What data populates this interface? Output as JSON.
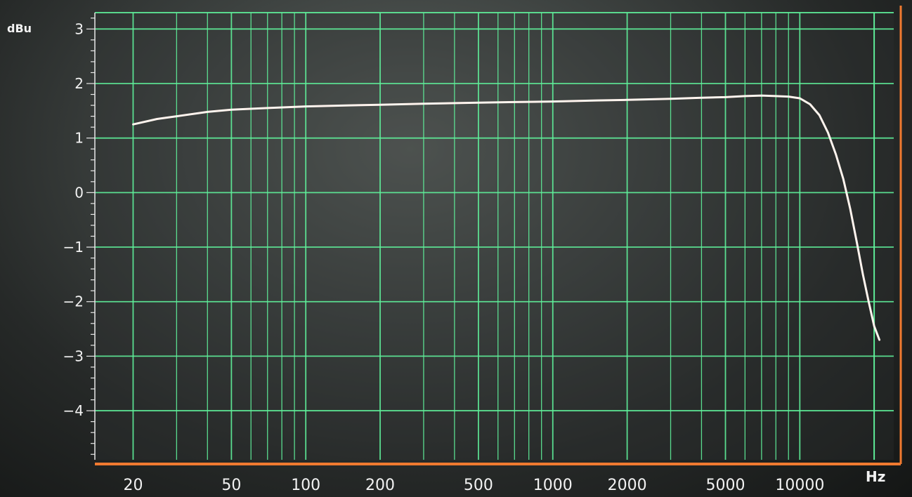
{
  "chart_data": {
    "type": "line",
    "title": "",
    "xlabel": "Hz",
    "ylabel": "dBu",
    "xscale": "log",
    "xlim": [
      14,
      24000
    ],
    "ylim": [
      -4.9,
      3.3
    ],
    "grid": true,
    "legend": "none",
    "x_ticks": [
      20,
      50,
      100,
      200,
      500,
      1000,
      2000,
      5000,
      10000
    ],
    "x_tick_labels": [
      "20",
      "50",
      "100",
      "200",
      "500",
      "1000",
      "2000",
      "5000",
      "10000"
    ],
    "y_ticks": [
      3,
      2,
      1,
      0,
      -1,
      -2,
      -3,
      -4
    ],
    "y_tick_labels": [
      "3",
      "2",
      "1",
      "0",
      "−1",
      "−2",
      "−3",
      "−4"
    ],
    "series": [
      {
        "x": [
          20,
          25,
          30,
          40,
          50,
          70,
          100,
          150,
          200,
          300,
          500,
          700,
          1000,
          1500,
          2000,
          3000,
          4000,
          5000,
          6000,
          7000,
          8000,
          9000,
          10000,
          11000,
          12000,
          13000,
          14000,
          15000,
          16000,
          17000,
          18000,
          19000,
          20000,
          21000
        ],
        "y": [
          1.25,
          1.35,
          1.4,
          1.48,
          1.52,
          1.55,
          1.58,
          1.6,
          1.61,
          1.63,
          1.65,
          1.66,
          1.67,
          1.69,
          1.7,
          1.72,
          1.74,
          1.75,
          1.77,
          1.78,
          1.77,
          1.76,
          1.73,
          1.62,
          1.42,
          1.1,
          0.7,
          0.25,
          -0.3,
          -0.9,
          -1.5,
          -2.0,
          -2.45,
          -2.7
        ]
      }
    ]
  },
  "style": {
    "background": "#2e3231",
    "grid_color": "#5ff09a",
    "curve_color": "#fff4ee",
    "frame_color": "#f07a30",
    "text_color": "#f2f2f2"
  }
}
